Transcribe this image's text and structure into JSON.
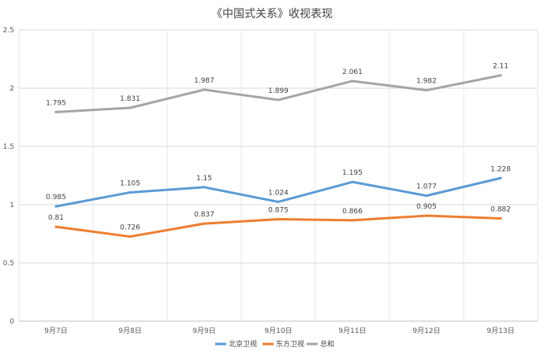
{
  "chart_data": {
    "type": "line",
    "title": "《中国式关系》收视表现",
    "categories": [
      "9月7日",
      "9月8日",
      "9月9日",
      "9月10日",
      "9月11日",
      "9月12日",
      "9月13日"
    ],
    "ylim": [
      0,
      2.5
    ],
    "yticks": [
      "0",
      "0.5",
      "1",
      "1.5",
      "2",
      "2.5"
    ],
    "ytick_values": [
      0,
      0.5,
      1,
      1.5,
      2,
      2.5
    ],
    "grid": true,
    "legend_position": "bottom",
    "series": [
      {
        "name": "北京卫视",
        "color": "#5b9bd5",
        "values": [
          0.985,
          1.105,
          1.15,
          1.024,
          1.195,
          1.077,
          1.228
        ],
        "labels": [
          "0.985",
          "1.105",
          "1.15",
          "1.024",
          "1.195",
          "1.077",
          "1.228"
        ]
      },
      {
        "name": "东方卫视",
        "color": "#ed7d31",
        "values": [
          0.81,
          0.726,
          0.837,
          0.875,
          0.866,
          0.905,
          0.882
        ],
        "labels": [
          "0.81",
          "0.726",
          "0.837",
          "0.875",
          "0.866",
          "0.905",
          "0.882"
        ]
      },
      {
        "name": "总和",
        "color": "#a5a5a5",
        "values": [
          1.795,
          1.831,
          1.987,
          1.899,
          2.061,
          1.982,
          2.11
        ],
        "labels": [
          "1.795",
          "1.831",
          "1.987",
          "1.899",
          "2.061",
          "1.982",
          "2.11"
        ]
      }
    ]
  }
}
